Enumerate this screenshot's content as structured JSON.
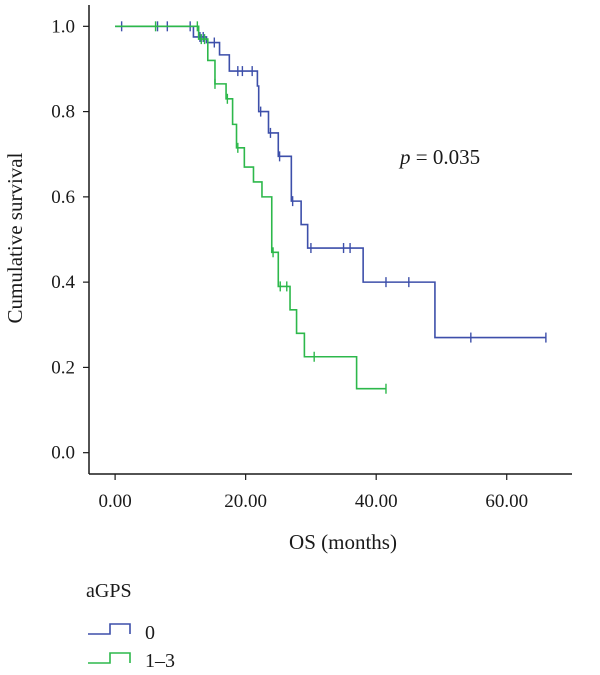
{
  "chart_data": {
    "type": "line",
    "subtype": "kaplan-meier step curve",
    "xlabel": "OS (months)",
    "ylabel": "Cumulative survival",
    "xlim": [
      -4,
      70
    ],
    "ylim": [
      -0.05,
      1.05
    ],
    "x_ticks": [
      0,
      20,
      40,
      60
    ],
    "x_tick_labels": [
      "0.00",
      "20.00",
      "40.00",
      "60.00"
    ],
    "y_ticks": [
      0,
      0.2,
      0.4,
      0.6,
      0.8,
      1.0
    ],
    "y_tick_labels": [
      "0.0",
      "0.2",
      "0.4",
      "0.6",
      "0.8",
      "1.0"
    ],
    "grid": false,
    "annotation": {
      "prefix": "p",
      "text": " = 0.035",
      "x": 27,
      "y": 0.685
    },
    "legend": {
      "title": "aGPS",
      "position": "bottom-left"
    },
    "series": [
      {
        "name": "0",
        "color": "#3d4faa",
        "steps": [
          [
            0,
            1.0
          ],
          [
            12,
            0.975
          ],
          [
            14,
            0.962
          ],
          [
            16,
            0.933
          ],
          [
            17.5,
            0.895
          ],
          [
            21.8,
            0.86
          ],
          [
            22,
            0.8
          ],
          [
            23.5,
            0.75
          ],
          [
            25,
            0.695
          ],
          [
            27,
            0.59
          ],
          [
            28.5,
            0.535
          ],
          [
            29.5,
            0.48
          ],
          [
            38,
            0.4
          ],
          [
            49,
            0.27
          ],
          [
            66,
            0.27
          ]
        ],
        "censors": [
          [
            1,
            1.0
          ],
          [
            6.5,
            1.0
          ],
          [
            8,
            1.0
          ],
          [
            11.5,
            1.0
          ],
          [
            13,
            0.975
          ],
          [
            13.5,
            0.975
          ],
          [
            15.2,
            0.962
          ],
          [
            18.8,
            0.895
          ],
          [
            19.5,
            0.895
          ],
          [
            21,
            0.895
          ],
          [
            22.3,
            0.8
          ],
          [
            23.8,
            0.75
          ],
          [
            25.2,
            0.695
          ],
          [
            27.2,
            0.59
          ],
          [
            30,
            0.48
          ],
          [
            35,
            0.48
          ],
          [
            36,
            0.48
          ],
          [
            41.5,
            0.4
          ],
          [
            45,
            0.4
          ],
          [
            54.5,
            0.27
          ],
          [
            66,
            0.27
          ]
        ]
      },
      {
        "name": "1–3",
        "color": "#2db84b",
        "steps": [
          [
            0,
            1.0
          ],
          [
            12.8,
            0.97
          ],
          [
            14.2,
            0.92
          ],
          [
            15.3,
            0.865
          ],
          [
            17,
            0.83
          ],
          [
            18,
            0.77
          ],
          [
            18.6,
            0.715
          ],
          [
            19.8,
            0.67
          ],
          [
            21.2,
            0.635
          ],
          [
            22.5,
            0.6
          ],
          [
            24,
            0.47
          ],
          [
            25,
            0.39
          ],
          [
            26.8,
            0.335
          ],
          [
            27.8,
            0.28
          ],
          [
            29,
            0.225
          ],
          [
            37,
            0.15
          ],
          [
            41.5,
            0.15
          ]
        ],
        "censors": [
          [
            6.2,
            1.0
          ],
          [
            12.6,
            1.0
          ],
          [
            13.2,
            0.97
          ],
          [
            13.7,
            0.97
          ],
          [
            15.3,
            0.865
          ],
          [
            17.2,
            0.83
          ],
          [
            18.8,
            0.715
          ],
          [
            24.2,
            0.47
          ],
          [
            25.3,
            0.39
          ],
          [
            26.3,
            0.39
          ],
          [
            30.5,
            0.225
          ],
          [
            41.5,
            0.15
          ]
        ]
      }
    ]
  }
}
